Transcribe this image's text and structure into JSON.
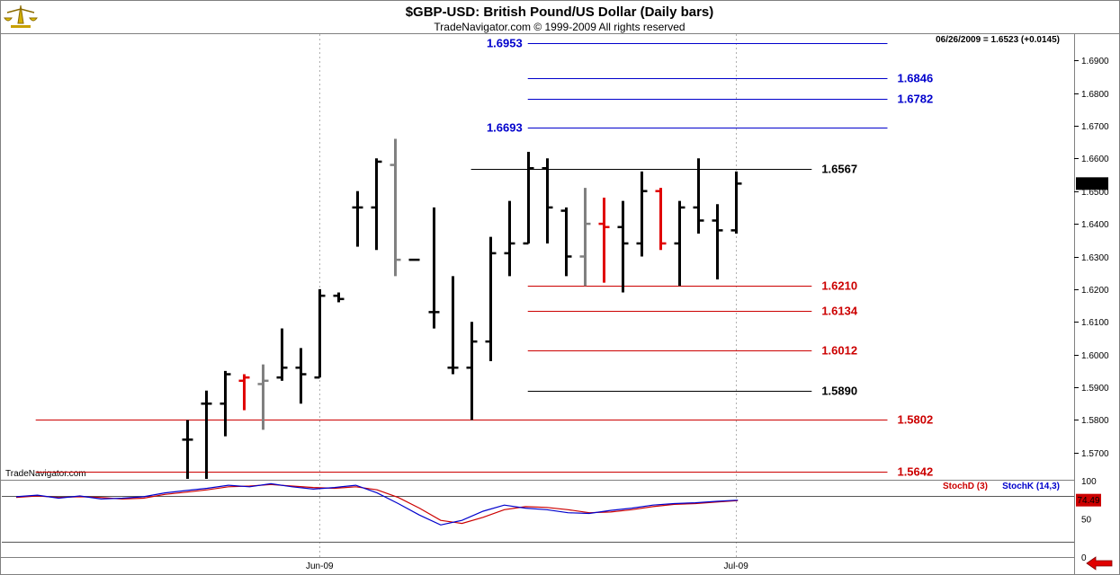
{
  "header": {
    "title": "$GBP-USD:  British Pound/US Dollar  (Daily bars)",
    "subtitle": "TradeNavigator.com © 1999-2009 All rights reserved",
    "last_info": "06/26/2009 = 1.6523 (+0.0145)",
    "watermark": "TradeNavigator.com"
  },
  "colors": {
    "up_bar": "#000000",
    "outside_bar": "#808080",
    "red_bar": "#e00000",
    "blue_level": "#0000cc",
    "red_level": "#cc0000",
    "black_level": "#000000",
    "stochd": "#cc0000",
    "stochk": "#0000cc",
    "border": "#808080"
  },
  "chart_data": [
    {
      "type": "bar",
      "subtype": "ohlc",
      "title": "$GBP-USD:  British Pound/US Dollar  (Daily bars)",
      "ylim": [
        1.562,
        1.698
      ],
      "y_ticks": [
        "1.5700",
        "1.5800",
        "1.5900",
        "1.6000",
        "1.6100",
        "1.6200",
        "1.6300",
        "1.6400",
        "1.6500",
        "1.6600",
        "1.6700",
        "1.6800",
        "1.6900"
      ],
      "x_ticks": [
        {
          "label": "Jun-09",
          "index": 7
        },
        {
          "label": "Jul-09",
          "index": 29
        }
      ],
      "last_price_label": "1.6523",
      "bars": [
        {
          "i": 0,
          "o": 1.574,
          "h": 1.58,
          "l": 1.562,
          "c": 1.574,
          "color": "black"
        },
        {
          "i": 1,
          "o": 1.585,
          "h": 1.589,
          "l": 1.562,
          "c": 1.585,
          "color": "black"
        },
        {
          "i": 2,
          "o": 1.585,
          "h": 1.595,
          "l": 1.575,
          "c": 1.594,
          "color": "black"
        },
        {
          "i": 3,
          "o": 1.592,
          "h": 1.594,
          "l": 1.583,
          "c": 1.593,
          "color": "red"
        },
        {
          "i": 4,
          "o": 1.591,
          "h": 1.597,
          "l": 1.577,
          "c": 1.592,
          "color": "gray"
        },
        {
          "i": 5,
          "o": 1.593,
          "h": 1.608,
          "l": 1.592,
          "c": 1.596,
          "color": "black"
        },
        {
          "i": 6,
          "o": 1.596,
          "h": 1.602,
          "l": 1.585,
          "c": 1.594,
          "color": "black"
        },
        {
          "i": 7,
          "o": 1.593,
          "h": 1.62,
          "l": 1.593,
          "c": 1.618,
          "color": "black"
        },
        {
          "i": 8,
          "o": 1.618,
          "h": 1.619,
          "l": 1.616,
          "c": 1.617,
          "color": "black"
        },
        {
          "i": 9,
          "o": 1.645,
          "h": 1.65,
          "l": 1.633,
          "c": 1.645,
          "color": "black"
        },
        {
          "i": 10,
          "o": 1.645,
          "h": 1.66,
          "l": 1.632,
          "c": 1.659,
          "color": "black"
        },
        {
          "i": 11,
          "o": 1.658,
          "h": 1.666,
          "l": 1.624,
          "c": 1.629,
          "color": "gray"
        },
        {
          "i": 12,
          "o": 1.629,
          "h": 1.629,
          "l": 1.629,
          "c": 1.629,
          "color": "black"
        },
        {
          "i": 13,
          "o": 1.613,
          "h": 1.645,
          "l": 1.608,
          "c": 1.613,
          "color": "black"
        },
        {
          "i": 14,
          "o": 1.596,
          "h": 1.624,
          "l": 1.594,
          "c": 1.596,
          "color": "black"
        },
        {
          "i": 15,
          "o": 1.596,
          "h": 1.61,
          "l": 1.58,
          "c": 1.604,
          "color": "black"
        },
        {
          "i": 16,
          "o": 1.604,
          "h": 1.636,
          "l": 1.598,
          "c": 1.631,
          "color": "black"
        },
        {
          "i": 17,
          "o": 1.631,
          "h": 1.647,
          "l": 1.624,
          "c": 1.634,
          "color": "black"
        },
        {
          "i": 18,
          "o": 1.634,
          "h": 1.662,
          "l": 1.634,
          "c": 1.657,
          "color": "black"
        },
        {
          "i": 19,
          "o": 1.657,
          "h": 1.66,
          "l": 1.634,
          "c": 1.645,
          "color": "black"
        },
        {
          "i": 20,
          "o": 1.644,
          "h": 1.645,
          "l": 1.624,
          "c": 1.63,
          "color": "black"
        },
        {
          "i": 21,
          "o": 1.63,
          "h": 1.651,
          "l": 1.621,
          "c": 1.64,
          "color": "gray"
        },
        {
          "i": 22,
          "o": 1.64,
          "h": 1.648,
          "l": 1.622,
          "c": 1.639,
          "color": "red"
        },
        {
          "i": 23,
          "o": 1.639,
          "h": 1.647,
          "l": 1.619,
          "c": 1.634,
          "color": "black"
        },
        {
          "i": 24,
          "o": 1.634,
          "h": 1.656,
          "l": 1.63,
          "c": 1.65,
          "color": "black"
        },
        {
          "i": 25,
          "o": 1.65,
          "h": 1.651,
          "l": 1.632,
          "c": 1.634,
          "color": "red"
        },
        {
          "i": 26,
          "o": 1.634,
          "h": 1.647,
          "l": 1.621,
          "c": 1.645,
          "color": "black"
        },
        {
          "i": 27,
          "o": 1.645,
          "h": 1.66,
          "l": 1.637,
          "c": 1.641,
          "color": "black"
        },
        {
          "i": 28,
          "o": 1.641,
          "h": 1.646,
          "l": 1.623,
          "c": 1.638,
          "color": "black"
        },
        {
          "i": 29,
          "o": 1.638,
          "h": 1.656,
          "l": 1.637,
          "c": 1.6523,
          "color": "black"
        }
      ],
      "levels": [
        {
          "value": 1.6953,
          "label": "1.6953",
          "color": "blue",
          "x_start": 18,
          "x_end": 37,
          "label_side": "left"
        },
        {
          "value": 1.6846,
          "label": "1.6846",
          "color": "blue",
          "x_start": 18,
          "x_end": 37,
          "label_side": "right"
        },
        {
          "value": 1.6782,
          "label": "1.6782",
          "color": "blue",
          "x_start": 18,
          "x_end": 37,
          "label_side": "right"
        },
        {
          "value": 1.6693,
          "label": "1.6693",
          "color": "blue",
          "x_start": 18,
          "x_end": 37,
          "label_side": "left"
        },
        {
          "value": 1.6567,
          "label": "1.6567",
          "color": "black",
          "x_start": 15,
          "x_end": 33,
          "label_side": "right"
        },
        {
          "value": 1.621,
          "label": "1.6210",
          "color": "red",
          "x_start": 18,
          "x_end": 33,
          "label_side": "right"
        },
        {
          "value": 1.6134,
          "label": "1.6134",
          "color": "red",
          "x_start": 18,
          "x_end": 33,
          "label_side": "right"
        },
        {
          "value": 1.6012,
          "label": "1.6012",
          "color": "red",
          "x_start": 18,
          "x_end": 33,
          "label_side": "right"
        },
        {
          "value": 1.589,
          "label": "1.5890",
          "color": "black",
          "x_start": 18,
          "x_end": 33,
          "label_side": "right"
        },
        {
          "value": 1.5802,
          "label": "1.5802",
          "color": "red",
          "x_start": -8,
          "x_end": 37,
          "label_side": "right"
        },
        {
          "value": 1.5642,
          "label": "1.5642",
          "color": "red",
          "x_start": -8,
          "x_end": 37,
          "label_side": "right"
        }
      ]
    },
    {
      "type": "line",
      "title": "",
      "ylim": [
        0,
        100
      ],
      "y_ticks": [
        "0",
        "50",
        "100"
      ],
      "reference_lines": [
        20,
        80
      ],
      "last_value_label": "74.49",
      "series": [
        {
          "name": "StochD (3)",
          "color": "red",
          "values": [
            78,
            80,
            78,
            79,
            78,
            76,
            77,
            82,
            85,
            88,
            92,
            93,
            95,
            93,
            91,
            90,
            92,
            88,
            78,
            64,
            48,
            44,
            52,
            62,
            66,
            65,
            62,
            58,
            59,
            62,
            66,
            69,
            70,
            72,
            74
          ]
        },
        {
          "name": "StochK (14,3)",
          "color": "blue",
          "values": [
            79,
            81,
            77,
            80,
            76,
            77,
            79,
            84,
            87,
            90,
            94,
            92,
            96,
            92,
            89,
            91,
            94,
            84,
            70,
            55,
            42,
            48,
            60,
            68,
            64,
            62,
            58,
            57,
            61,
            64,
            68,
            70,
            71,
            73,
            74.49
          ]
        }
      ]
    }
  ]
}
